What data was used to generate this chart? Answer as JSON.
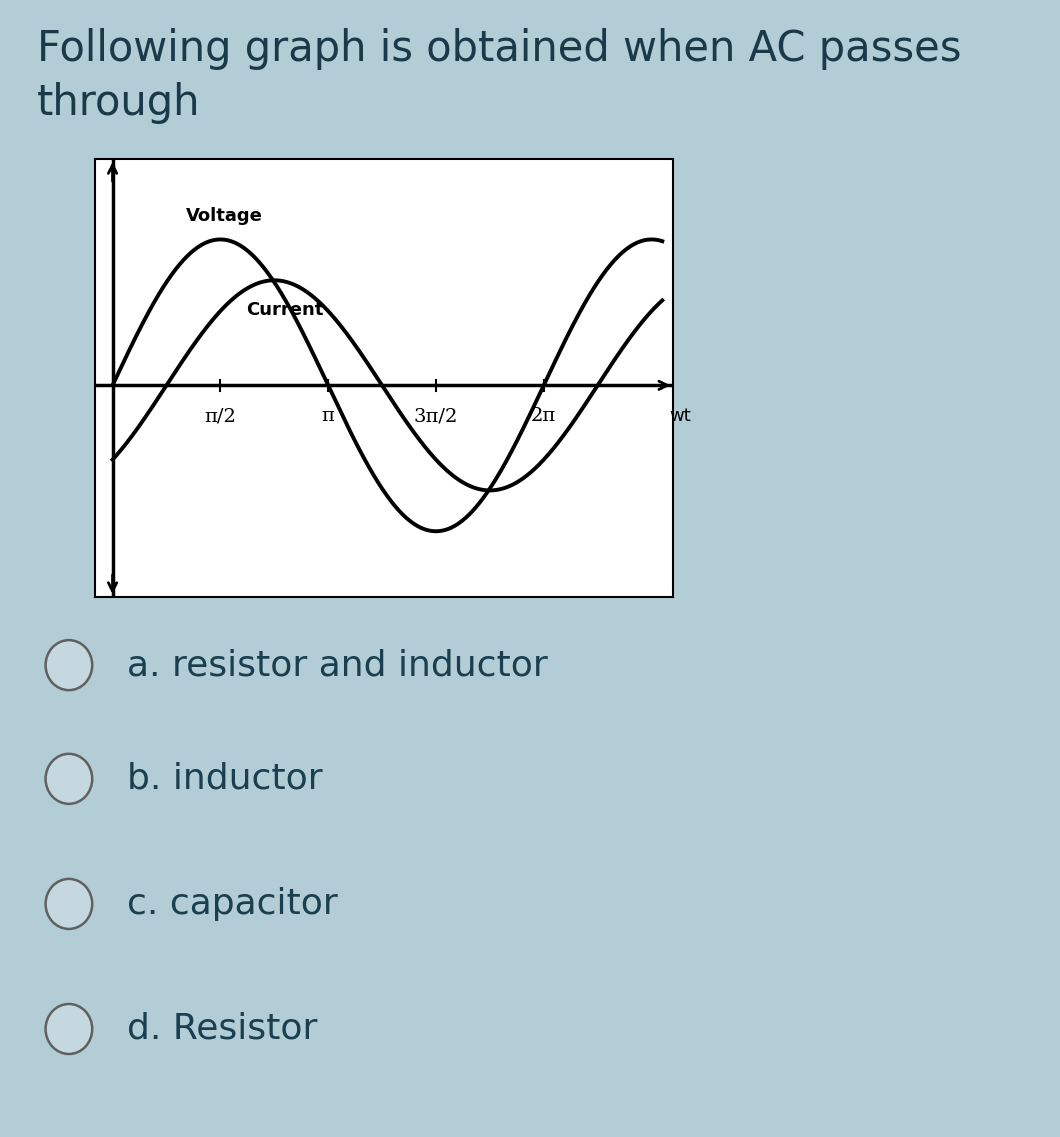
{
  "background_color": "#b3cdd6",
  "title_text": "Following graph is obtained when AC passes\nthrough",
  "title_fontsize": 30,
  "title_color": "#1a3a4a",
  "graph_bg": "#ffffff",
  "voltage_label": "Voltage",
  "current_label": "Current",
  "wt_label": "wt",
  "xtick_labels": [
    "π/2",
    "π",
    "3π/2",
    "2π"
  ],
  "options": [
    "a. resistor and inductor",
    "b. inductor",
    "c. capacitor",
    "d. Resistor"
  ],
  "option_fontsize": 26,
  "option_color": "#1a4050",
  "voltage_amplitude": 1.0,
  "current_amplitude": 0.72,
  "voltage_phase": 0.0,
  "current_phase": 0.7853981633974483,
  "line_color": "#000000",
  "line_width": 2.8
}
